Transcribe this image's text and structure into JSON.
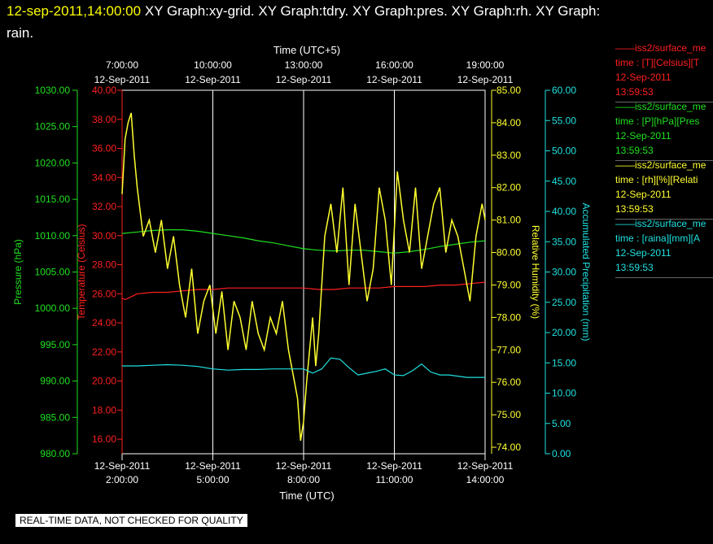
{
  "header": {
    "timestamp": "12-sep-2011,14:00:00",
    "title_rest": "XY Graph:xy-grid.  XY Graph:tdry.  XY Graph:pres.  XY Graph:rh.  XY Graph:",
    "title_line2": "rain."
  },
  "footer": {
    "quality_note": "REAL-TIME DATA, NOT CHECKED FOR QUALITY"
  },
  "legend": [
    {
      "line1": "——iss2/surface_me",
      "line2": "time : [T][Celsius][T",
      "date": "12-Sep-2011",
      "time": "13:59:53",
      "color": "#ff2020"
    },
    {
      "line1": "——iss2/surface_me",
      "line2": "time : [P][hPa][Pres",
      "date": "12-Sep-2011",
      "time": "13:59:53",
      "color": "#20e020"
    },
    {
      "line1": "——iss2/surface_me",
      "line2": "time : [rh][%][Relati",
      "date": "12-Sep-2011",
      "time": "13:59:53",
      "color": "#ffff30"
    },
    {
      "line1": "——iss2/surface_me",
      "line2": "time : [raina][mm][A",
      "date": "12-Sep-2011",
      "time": "13:59:53",
      "color": "#20e0e0"
    }
  ],
  "chart_data": {
    "type": "line",
    "x_bottom": {
      "label": "Time (UTC)",
      "range": [
        "2011-09-12 02:00",
        "2011-09-12 14:00"
      ],
      "ticks": [
        {
          "date": "12-Sep-2011",
          "time": "2:00:00"
        },
        {
          "date": "12-Sep-2011",
          "time": "5:00:00"
        },
        {
          "date": "12-Sep-2011",
          "time": "8:00:00"
        },
        {
          "date": "12-Sep-2011",
          "time": "11:00:00"
        },
        {
          "date": "12-Sep-2011",
          "time": "14:00:00"
        }
      ]
    },
    "x_top": {
      "label": "Time (UTC+5)",
      "ticks": [
        {
          "time": "7:00:00",
          "date": "12-Sep-2011"
        },
        {
          "time": "10:00:00",
          "date": "12-Sep-2011"
        },
        {
          "time": "13:00:00",
          "date": "12-Sep-2011"
        },
        {
          "time": "16:00:00",
          "date": "12-Sep-2011"
        },
        {
          "time": "19:00:00",
          "date": "12-Sep-2011"
        }
      ]
    },
    "axes": {
      "pressure": {
        "label": "Pressure (hPa)",
        "color": "#20e020",
        "range": [
          980,
          1030
        ],
        "ticks": [
          "980.00",
          "985.00",
          "990.00",
          "995.00",
          "1000.00",
          "1005.00",
          "1010.00",
          "1015.00",
          "1020.00",
          "1025.00",
          "1030.00"
        ]
      },
      "temperature": {
        "label": "Temperature (Celsius)",
        "color": "#ff2020",
        "range": [
          15,
          40
        ],
        "ticks": [
          "16.00",
          "18.00",
          "20.00",
          "22.00",
          "24.00",
          "26.00",
          "28.00",
          "30.00",
          "32.00",
          "34.00",
          "36.00",
          "38.00",
          "40.00"
        ]
      },
      "humidity": {
        "label": "Relative Humidity (%)",
        "color": "#ffff30",
        "range": [
          73.8,
          85
        ],
        "ticks": [
          "74.00",
          "75.00",
          "76.00",
          "77.00",
          "78.00",
          "79.00",
          "80.00",
          "81.00",
          "82.00",
          "83.00",
          "84.00",
          "85.00"
        ]
      },
      "precip": {
        "label": "Accumulated Precipitation (mm)",
        "color": "#20e0e0",
        "range": [
          0,
          60
        ],
        "ticks": [
          "0.00",
          "5.00",
          "10.00",
          "15.00",
          "20.00",
          "25.00",
          "30.00",
          "35.00",
          "40.00",
          "45.00",
          "50.00",
          "55.00",
          "60.00"
        ]
      }
    },
    "grid": true,
    "series": [
      {
        "axis": "temperature",
        "color": "#ff2020",
        "x": [
          2.0,
          2.1,
          2.3,
          2.5,
          3.0,
          3.5,
          4.0,
          4.5,
          5.0,
          5.5,
          6.0,
          6.5,
          7.0,
          7.5,
          8.0,
          8.5,
          9.0,
          9.5,
          10.0,
          10.5,
          11.0,
          11.5,
          12.0,
          12.5,
          13.0,
          13.5,
          14.0
        ],
        "y": [
          25.7,
          25.6,
          25.8,
          26.0,
          26.1,
          26.1,
          26.2,
          26.3,
          26.3,
          26.4,
          26.4,
          26.4,
          26.4,
          26.4,
          26.4,
          26.3,
          26.3,
          26.4,
          26.4,
          26.4,
          26.5,
          26.5,
          26.5,
          26.6,
          26.6,
          26.7,
          26.8
        ]
      },
      {
        "axis": "pressure",
        "color": "#20e020",
        "x": [
          2.0,
          2.5,
          3.0,
          3.5,
          4.0,
          4.5,
          5.0,
          5.5,
          6.0,
          6.5,
          7.0,
          7.5,
          8.0,
          8.5,
          9.0,
          9.5,
          10.0,
          10.5,
          11.0,
          11.5,
          12.0,
          12.5,
          13.0,
          13.5,
          14.0
        ],
        "y": [
          1010.3,
          1010.5,
          1010.7,
          1010.8,
          1010.8,
          1010.6,
          1010.3,
          1010.0,
          1009.7,
          1009.3,
          1009.0,
          1008.6,
          1008.2,
          1008.0,
          1007.9,
          1008.0,
          1008.0,
          1007.8,
          1007.6,
          1007.8,
          1008.1,
          1008.5,
          1008.8,
          1009.1,
          1009.3
        ]
      },
      {
        "axis": "humidity",
        "color": "#ffff30",
        "x": [
          2.0,
          2.1,
          2.2,
          2.3,
          2.4,
          2.5,
          2.7,
          2.9,
          3.1,
          3.3,
          3.5,
          3.7,
          3.9,
          4.1,
          4.3,
          4.5,
          4.7,
          4.9,
          5.1,
          5.3,
          5.5,
          5.7,
          5.9,
          6.1,
          6.3,
          6.5,
          6.7,
          6.9,
          7.1,
          7.3,
          7.5,
          7.7,
          7.8,
          7.9,
          8.0,
          8.1,
          8.2,
          8.3,
          8.4,
          8.5,
          8.7,
          8.9,
          9.1,
          9.3,
          9.5,
          9.7,
          9.9,
          10.1,
          10.3,
          10.5,
          10.7,
          10.9,
          11.1,
          11.3,
          11.5,
          11.7,
          11.9,
          12.1,
          12.3,
          12.5,
          12.7,
          12.9,
          13.1,
          13.3,
          13.5,
          13.7,
          13.9,
          14.0
        ],
        "y": [
          81.8,
          83.5,
          84.0,
          84.3,
          83.0,
          82.0,
          80.5,
          81.0,
          80.0,
          81.0,
          79.5,
          80.5,
          79.0,
          78.0,
          79.5,
          77.5,
          78.5,
          79.0,
          77.5,
          78.8,
          77.0,
          78.5,
          78.0,
          77.0,
          78.5,
          77.5,
          77.0,
          78.0,
          77.5,
          78.5,
          77.0,
          76.0,
          75.5,
          74.2,
          74.8,
          76.0,
          77.0,
          78.0,
          76.5,
          77.5,
          80.5,
          81.5,
          80.0,
          82.0,
          79.0,
          81.5,
          80.0,
          78.5,
          79.5,
          82.0,
          81.0,
          79.0,
          82.5,
          81.0,
          80.0,
          82.0,
          79.5,
          80.5,
          81.5,
          82.0,
          80.0,
          81.0,
          80.5,
          79.5,
          78.5,
          80.5,
          81.5,
          81.0
        ]
      },
      {
        "axis": "precip",
        "color": "#20e0e0",
        "x": [
          2.0,
          2.5,
          3.0,
          3.5,
          4.0,
          4.5,
          5.0,
          5.5,
          6.0,
          6.5,
          7.0,
          7.5,
          8.0,
          8.3,
          8.6,
          8.9,
          9.2,
          9.5,
          9.8,
          10.1,
          10.4,
          10.7,
          11.0,
          11.3,
          11.6,
          11.9,
          12.2,
          12.5,
          12.8,
          13.1,
          13.4,
          13.7,
          14.0
        ],
        "y": [
          14.5,
          14.5,
          14.6,
          14.7,
          14.6,
          14.4,
          14.0,
          13.8,
          13.9,
          13.9,
          14.0,
          14.0,
          14.0,
          13.3,
          14.0,
          15.8,
          15.6,
          14.2,
          13.0,
          13.3,
          13.6,
          14.0,
          13.0,
          12.9,
          13.7,
          14.8,
          13.5,
          13.0,
          13.0,
          12.8,
          12.6,
          12.6,
          12.6
        ]
      }
    ]
  }
}
